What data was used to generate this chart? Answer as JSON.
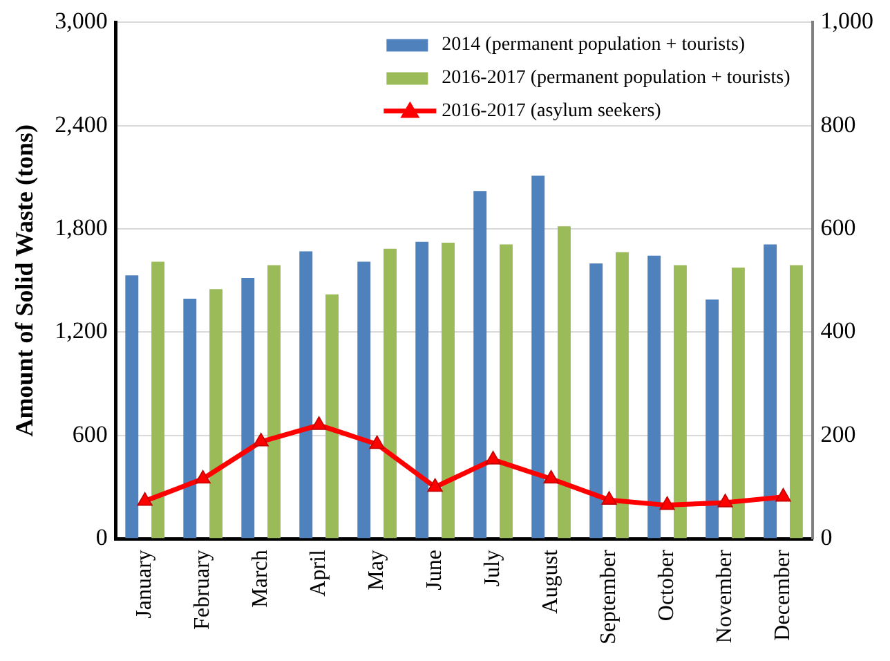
{
  "chart_data": {
    "type": "bar",
    "ylabel": "Amount of Solid Waste (tons)",
    "categories": [
      "January",
      "February",
      "March",
      "April",
      "May",
      "June",
      "July",
      "August",
      "September",
      "October",
      "November",
      "December"
    ],
    "series": [
      {
        "name": "2014 (permanent population + tourists)",
        "color": "#4f81bd",
        "values": [
          1530,
          1395,
          1515,
          1670,
          1610,
          1725,
          2020,
          2110,
          1600,
          1645,
          1390,
          1710
        ]
      },
      {
        "name": "2016-2017 (permanent population + tourists)",
        "color": "#9bbb59",
        "values": [
          1610,
          1450,
          1590,
          1420,
          1685,
          1720,
          1710,
          1815,
          1665,
          1590,
          1575,
          1590
        ]
      },
      {
        "name": "2016-2017 (asylum seekers)",
        "type": "line",
        "axis": "y2",
        "color": "#ff0000",
        "marker": "triangle",
        "values": [
          73,
          116,
          188,
          220,
          183,
          100,
          153,
          116,
          75,
          65,
          70,
          81
        ]
      }
    ],
    "ylim": [
      0,
      3000
    ],
    "yticks": [
      {
        "value": 0,
        "label": "0"
      },
      {
        "value": 600,
        "label": "600"
      },
      {
        "value": 1200,
        "label": "1,200"
      },
      {
        "value": 1800,
        "label": "1,800"
      },
      {
        "value": 2400,
        "label": "2,400"
      },
      {
        "value": 3000,
        "label": "3,000"
      }
    ],
    "y2lim": [
      0,
      1000
    ],
    "y2ticks": [
      {
        "value": 0,
        "label": "0"
      },
      {
        "value": 200,
        "label": "200"
      },
      {
        "value": 400,
        "label": "400"
      },
      {
        "value": 600,
        "label": "600"
      },
      {
        "value": 800,
        "label": "800"
      },
      {
        "value": 1000,
        "label": "1,000"
      }
    ],
    "grid": "y",
    "legend": "top right"
  }
}
